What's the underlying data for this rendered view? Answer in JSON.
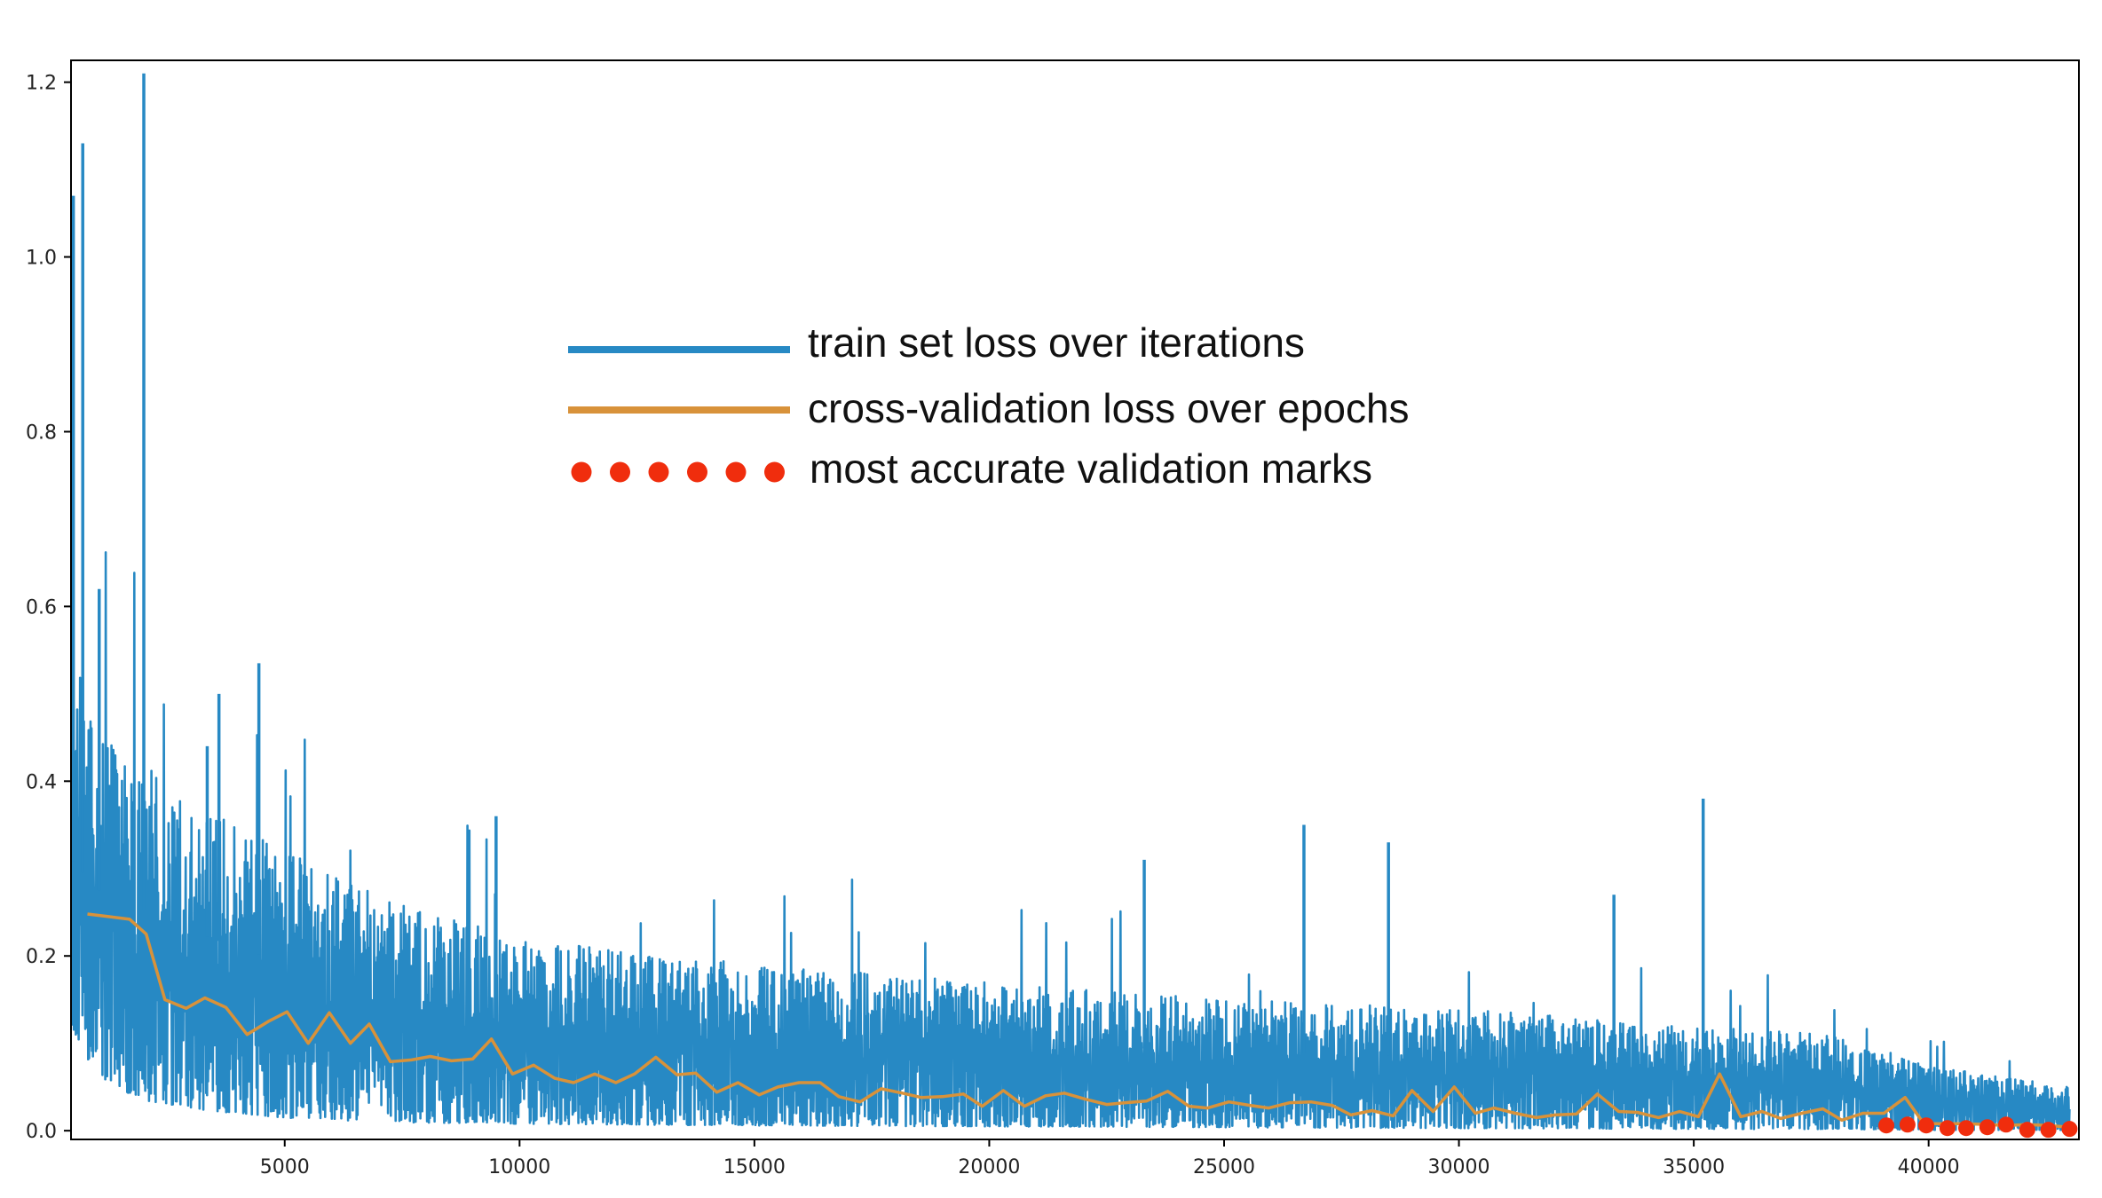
{
  "chart_data": {
    "type": "line",
    "title": "",
    "xlabel": "",
    "ylabel": "",
    "xlim": [
      450,
      43200
    ],
    "ylim": [
      -0.01,
      1.225
    ],
    "x_ticks": [
      5000,
      10000,
      15000,
      20000,
      25000,
      30000,
      35000,
      40000
    ],
    "x_tick_labels": [
      "5000",
      "10000",
      "15000",
      "20000",
      "25000",
      "30000",
      "35000",
      "40000"
    ],
    "y_ticks": [
      0.0,
      0.2,
      0.4,
      0.6,
      0.8,
      1.0,
      1.2
    ],
    "y_tick_labels": [
      "0.0",
      "0.2",
      "0.4",
      "0.6",
      "0.8",
      "1.0",
      "1.2"
    ],
    "grid": false,
    "legend_placement": "upper-center",
    "legend": {
      "train": "train set loss over iterations",
      "val": "cross-validation loss over epochs",
      "marks": "most accurate validation marks"
    },
    "colors": {
      "train": "#2789c4",
      "val": "#d8923a",
      "marks": "#f02d0d"
    },
    "series": [
      {
        "name": "train set loss over iterations",
        "kind": "noisy-line",
        "x_range": [
          450,
          43000
        ],
        "envelope": {
          "x": [
            450,
            1000,
            2000,
            3000,
            5000,
            7000,
            10000,
            15000,
            20000,
            25000,
            30000,
            35000,
            38000,
            40000,
            43000
          ],
          "upper": [
            0.52,
            0.46,
            0.42,
            0.38,
            0.32,
            0.27,
            0.22,
            0.19,
            0.17,
            0.15,
            0.14,
            0.12,
            0.11,
            0.075,
            0.05
          ],
          "lower": [
            0.12,
            0.06,
            0.035,
            0.025,
            0.015,
            0.01,
            0.008,
            0.006,
            0.005,
            0.004,
            0.003,
            0.002,
            0.002,
            0.001,
            0.001
          ]
        },
        "spikes": [
          {
            "x": 500,
            "y": 1.07
          },
          {
            "x": 700,
            "y": 1.13
          },
          {
            "x": 1050,
            "y": 0.62
          },
          {
            "x": 2000,
            "y": 1.21
          },
          {
            "x": 3350,
            "y": 0.44
          },
          {
            "x": 3600,
            "y": 0.5
          },
          {
            "x": 4450,
            "y": 0.535
          },
          {
            "x": 9500,
            "y": 0.36
          },
          {
            "x": 23300,
            "y": 0.31
          },
          {
            "x": 26700,
            "y": 0.35
          },
          {
            "x": 28500,
            "y": 0.33
          },
          {
            "x": 33300,
            "y": 0.27
          },
          {
            "x": 35200,
            "y": 0.38
          }
        ]
      },
      {
        "name": "cross-validation loss over epochs",
        "kind": "line",
        "x": [
          800,
          1250,
          1700,
          2050,
          2450,
          2900,
          3300,
          3750,
          4200,
          4650,
          5050,
          5500,
          5950,
          6400,
          6800,
          7250,
          7700,
          8100,
          8550,
          9000,
          9400,
          9850,
          10300,
          10750,
          11150,
          11600,
          12050,
          12450,
          12900,
          13350,
          13750,
          14200,
          14650,
          15100,
          15500,
          15950,
          16400,
          16800,
          17250,
          17700,
          18150,
          18550,
          19000,
          19450,
          19850,
          20300,
          20750,
          21200,
          21600,
          22050,
          22500,
          22900,
          23350,
          23800,
          24250,
          24650,
          25100,
          25550,
          25950,
          26400,
          26850,
          27300,
          27700,
          28150,
          28600,
          29000,
          29450,
          29900,
          30350,
          30750,
          31200,
          31650,
          32050,
          32500,
          32950,
          33400,
          33800,
          34250,
          34700,
          35100,
          35550,
          36000,
          36450,
          36850,
          37300,
          37750,
          38150,
          38600,
          39050,
          39500,
          39900,
          40350,
          40800,
          41250,
          41650,
          42100,
          42550,
          43000
        ],
        "values": [
          0.248,
          0.245,
          0.242,
          0.225,
          0.15,
          0.14,
          0.152,
          0.141,
          0.11,
          0.125,
          0.136,
          0.1,
          0.135,
          0.1,
          0.122,
          0.079,
          0.081,
          0.085,
          0.08,
          0.082,
          0.105,
          0.065,
          0.075,
          0.06,
          0.055,
          0.065,
          0.055,
          0.065,
          0.084,
          0.064,
          0.066,
          0.044,
          0.055,
          0.041,
          0.05,
          0.055,
          0.055,
          0.039,
          0.033,
          0.048,
          0.043,
          0.038,
          0.039,
          0.042,
          0.028,
          0.046,
          0.028,
          0.04,
          0.043,
          0.036,
          0.03,
          0.032,
          0.034,
          0.045,
          0.028,
          0.026,
          0.033,
          0.029,
          0.026,
          0.032,
          0.033,
          0.029,
          0.018,
          0.023,
          0.017,
          0.046,
          0.022,
          0.05,
          0.02,
          0.026,
          0.02,
          0.015,
          0.018,
          0.019,
          0.042,
          0.022,
          0.021,
          0.015,
          0.022,
          0.016,
          0.065,
          0.016,
          0.022,
          0.014,
          0.02,
          0.025,
          0.012,
          0.02,
          0.02,
          0.038,
          0.008,
          0.008,
          0.008,
          0.007,
          0.006,
          0.007,
          0.006,
          0.004
        ]
      },
      {
        "name": "most accurate validation marks",
        "kind": "scatter",
        "x": [
          39100,
          39550,
          39950,
          40400,
          40800,
          41250,
          41650,
          42100,
          42550,
          43000
        ],
        "values": [
          0.006,
          0.007,
          0.006,
          0.003,
          0.003,
          0.004,
          0.007,
          0.001,
          0.001,
          0.002
        ]
      }
    ]
  }
}
